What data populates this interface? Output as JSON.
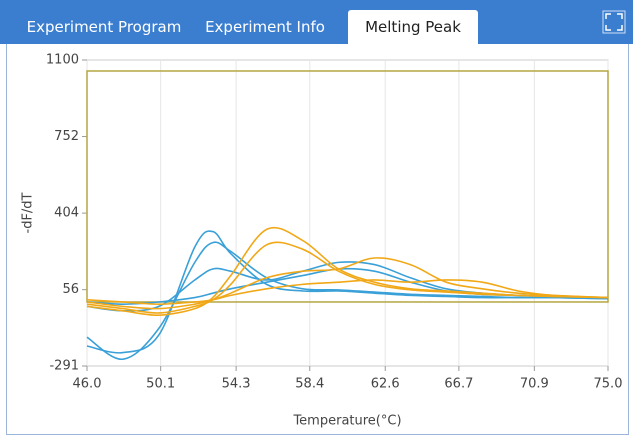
{
  "tabs": [
    {
      "label": "Experiment Program",
      "active": false
    },
    {
      "label": "Experiment Info",
      "active": false
    },
    {
      "label": "Melting Peak",
      "active": true
    }
  ],
  "chart_data": {
    "type": "line",
    "ylabel": "-dF/dT",
    "xlabel": "Temperature(°C)",
    "x": [
      46,
      48,
      50,
      52,
      53,
      54,
      56,
      58,
      60,
      62,
      64,
      66,
      68,
      70,
      72,
      75
    ],
    "xlim": [
      46,
      75
    ],
    "xticks": [
      {
        "value": 46,
        "label": "46.0"
      },
      50.1,
      54.3,
      58.4,
      62.6,
      66.7,
      70.9,
      {
        "value": 75,
        "label": "75.0"
      }
    ],
    "ylim": [
      -291,
      1100
    ],
    "yticks": [
      -291,
      56,
      404,
      752,
      1100
    ],
    "grid": "x",
    "threshold_box": {
      "top": 1050,
      "bottom": 0,
      "color": "#b5a642"
    },
    "series": [
      {
        "color": "#3aa0d8",
        "values": [
          -200,
          -230,
          -150,
          250,
          320,
          220,
          80,
          50,
          50,
          40,
          30,
          25,
          20,
          20,
          20,
          15
        ]
      },
      {
        "color": "#3aa0d8",
        "values": [
          -160,
          -260,
          -120,
          180,
          270,
          230,
          110,
          60,
          55,
          45,
          35,
          30,
          25,
          20,
          20,
          15
        ]
      },
      {
        "color": "#3aa0d8",
        "values": [
          -20,
          -40,
          -20,
          100,
          150,
          140,
          100,
          140,
          180,
          170,
          110,
          60,
          40,
          30,
          25,
          20
        ]
      },
      {
        "color": "#3aa0d8",
        "values": [
          0,
          -10,
          0,
          20,
          40,
          60,
          90,
          120,
          150,
          140,
          90,
          50,
          35,
          30,
          25,
          20
        ]
      },
      {
        "color": "#f0a818",
        "values": [
          -20,
          -40,
          -60,
          -30,
          20,
          120,
          330,
          280,
          150,
          90,
          60,
          50,
          40,
          30,
          25,
          20
        ]
      },
      {
        "color": "#f0a818",
        "values": [
          -10,
          -30,
          -50,
          -20,
          10,
          80,
          260,
          240,
          140,
          80,
          55,
          45,
          35,
          30,
          25,
          20
        ]
      },
      {
        "color": "#f0a818",
        "values": [
          0,
          -20,
          -30,
          -10,
          10,
          40,
          110,
          140,
          150,
          200,
          170,
          90,
          60,
          40,
          30,
          20
        ]
      },
      {
        "color": "#f0a818",
        "values": [
          10,
          0,
          -10,
          0,
          10,
          30,
          60,
          80,
          90,
          100,
          90,
          100,
          90,
          50,
          30,
          20
        ]
      }
    ]
  }
}
